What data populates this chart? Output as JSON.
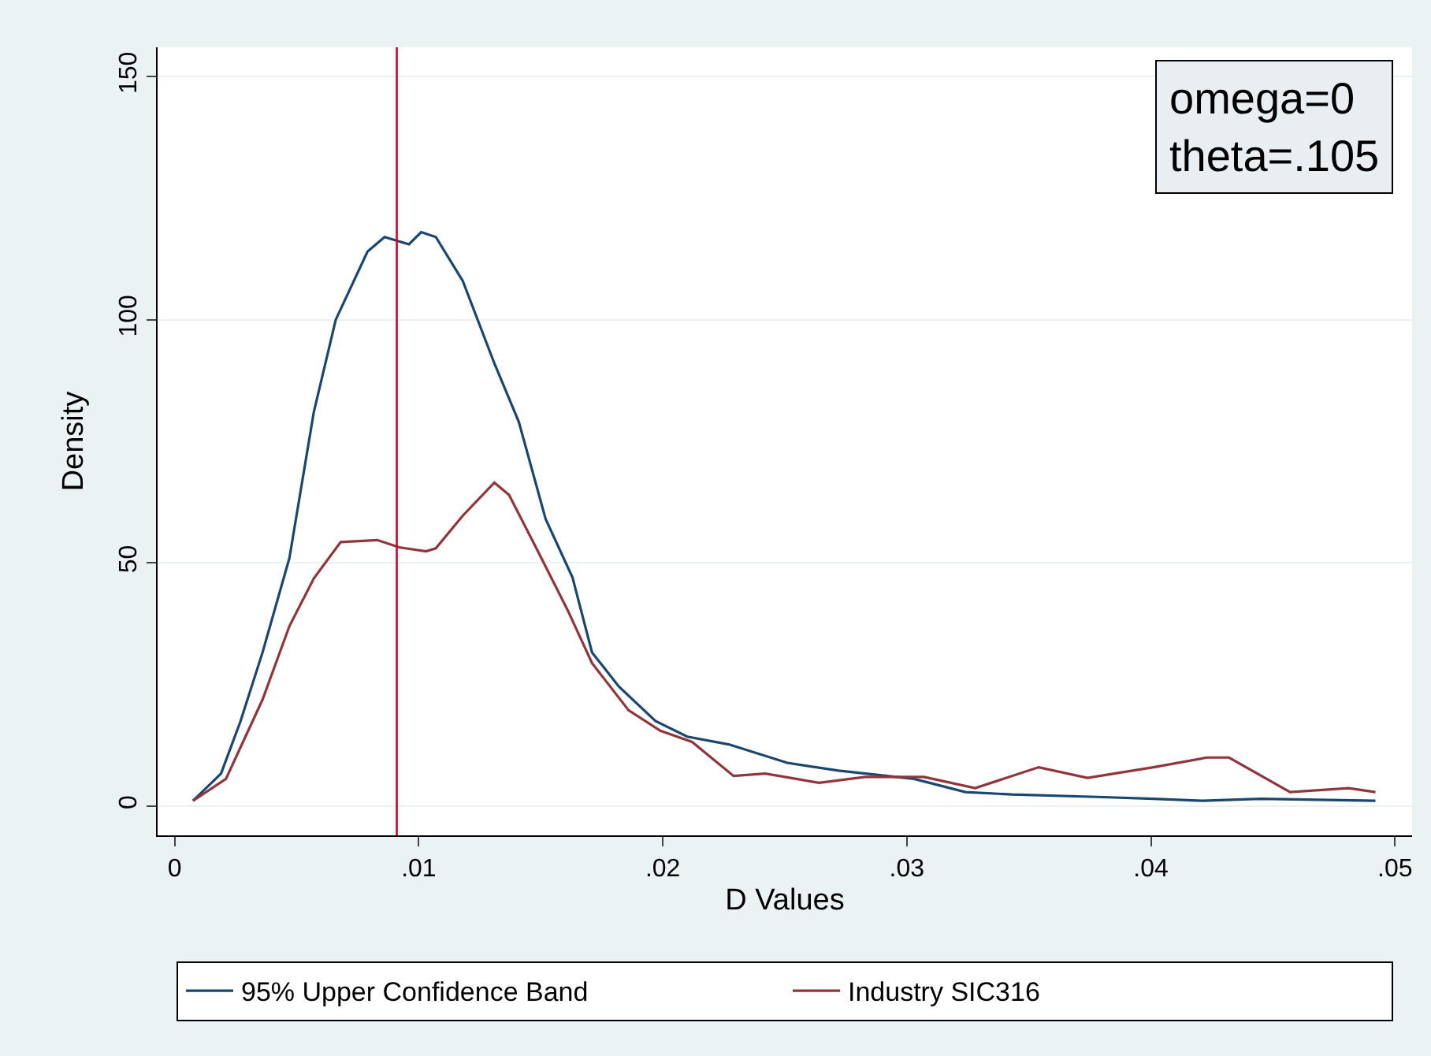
{
  "chart_data": {
    "type": "line",
    "xlabel": "D Values",
    "ylabel": "Density",
    "xlim": [
      -0.0007,
      0.0507
    ],
    "ylim": [
      -6,
      156
    ],
    "xticks": [
      0,
      {
        "value": 0.01,
        "label": ".01"
      },
      {
        "value": 0.02,
        "label": ".02"
      },
      {
        "value": 0.03,
        "label": ".03"
      },
      {
        "value": 0.04,
        "label": ".04"
      },
      {
        "value": 0.05,
        "label": ".05"
      }
    ],
    "yticks": [
      0,
      50,
      100,
      150
    ],
    "grid": "y",
    "legend": "bottom",
    "annotations": [
      "omega=0\ntheta=.105"
    ],
    "ref_lines": [
      {
        "axis": "x",
        "value": 0.0091,
        "color": "#d8002a"
      }
    ],
    "series": [
      {
        "name": "95% Upper Confidence Band",
        "color": "#1a476f",
        "x": [
          0.00075,
          0.0019,
          0.0027,
          0.0036,
          0.0047,
          0.0057,
          0.0066,
          0.0079,
          0.0086,
          0.0096,
          0.0101,
          0.0107,
          0.0118,
          0.0131,
          0.0141,
          0.0152,
          0.0163,
          0.0171,
          0.0182,
          0.0197,
          0.021,
          0.0227,
          0.0251,
          0.0272,
          0.0303,
          0.0324,
          0.0343,
          0.0378,
          0.0401,
          0.0421,
          0.0445,
          0.0492
        ],
        "values": [
          1.1,
          6.7,
          17.5,
          31.6,
          51,
          81,
          100,
          114,
          117,
          115.5,
          118,
          117,
          108,
          91,
          79,
          59,
          47,
          31.6,
          24.6,
          17.5,
          14.3,
          12.7,
          8.9,
          7.3,
          5.6,
          2.9,
          2.4,
          1.9,
          1.5,
          1.1,
          1.5,
          1.1
        ]
      },
      {
        "name": "Industry SIC316",
        "color": "#90353b",
        "x": [
          0.00075,
          0.0021,
          0.0036,
          0.0047,
          0.0057,
          0.0068,
          0.0083,
          0.0092,
          0.0103,
          0.0107,
          0.0118,
          0.0131,
          0.0137,
          0.0148,
          0.0161,
          0.0171,
          0.0186,
          0.0199,
          0.0212,
          0.0229,
          0.0242,
          0.0264,
          0.0283,
          0.0307,
          0.0328,
          0.0354,
          0.0374,
          0.0401,
          0.0423,
          0.0432,
          0.0457,
          0.0481,
          0.0492
        ],
        "values": [
          1.1,
          5.6,
          21.9,
          37,
          46.8,
          54.3,
          54.7,
          53.2,
          52.4,
          53,
          59.7,
          66.5,
          64,
          53.2,
          40.3,
          29.4,
          19.7,
          15.5,
          13.2,
          6.2,
          6.7,
          4.8,
          6.0,
          6.0,
          3.7,
          8.0,
          5.8,
          8.0,
          10.0,
          10.0,
          2.9,
          3.7,
          2.9
        ]
      }
    ]
  }
}
